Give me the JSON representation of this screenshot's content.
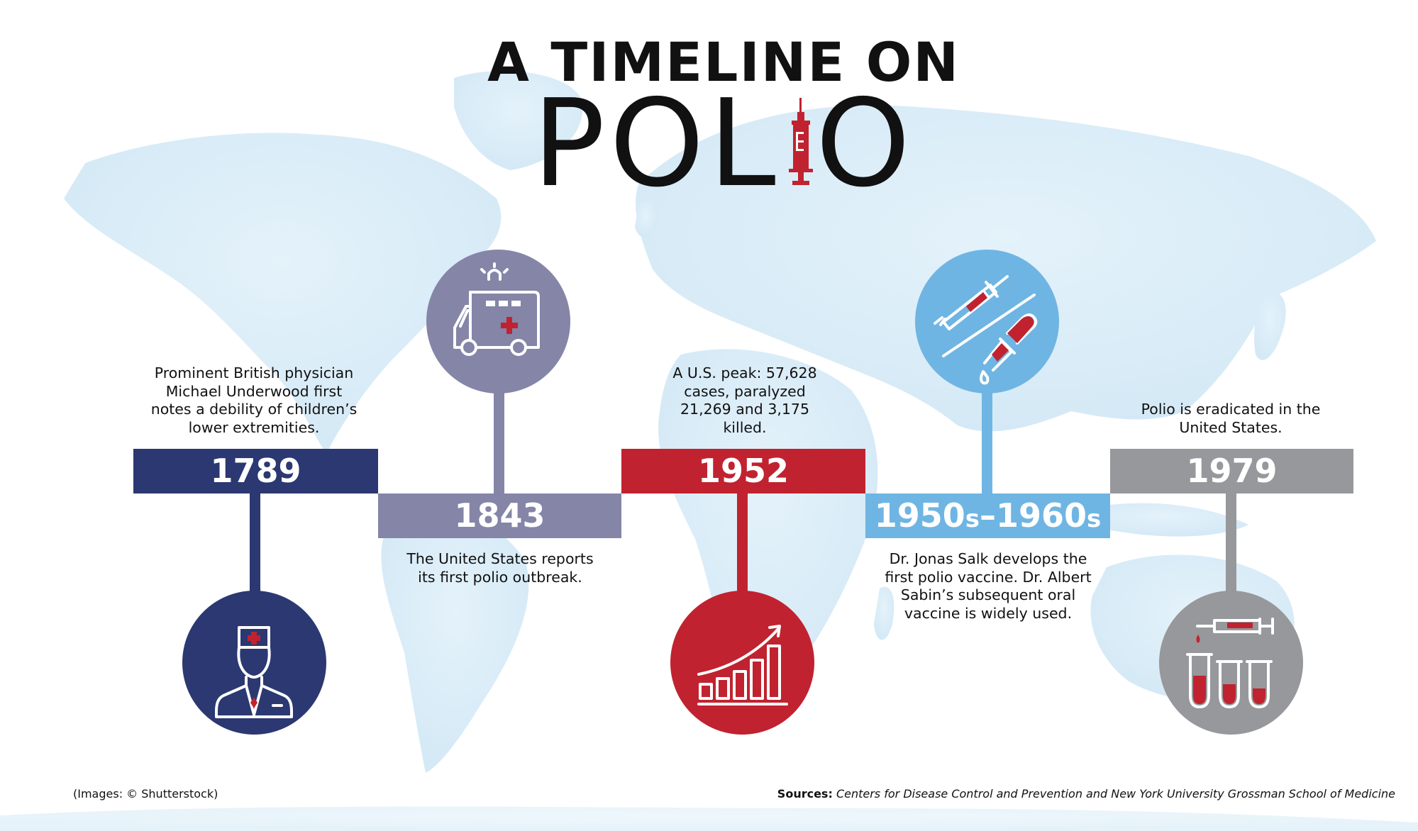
{
  "title": {
    "line1": "A TIMELINE ON",
    "word_left": "POL",
    "word_right": "O"
  },
  "colors": {
    "navy": "#2b3871",
    "purple": "#8485a7",
    "red": "#c1222f",
    "lightblue": "#6fb5e3",
    "gray": "#97989b",
    "map": "#d9ecf7"
  },
  "events": [
    {
      "year": "1789",
      "text": "Prominent British physician Michael Underwood first notes a debility of children’s lower extremities.",
      "icon": "doctor-icon"
    },
    {
      "year": "1843",
      "text": "The United States reports its first polio outbreak.",
      "icon": "ambulance-icon"
    },
    {
      "year": "1952",
      "text": "A U.S. peak: 57,628 cases, paralyzed 21,269 and 3,175 killed.",
      "icon": "rising-chart-icon"
    },
    {
      "year_main1": "1950",
      "year_s1": "s",
      "year_dash": "–",
      "year_main2": "1960",
      "year_s2": "s",
      "text": "Dr. Jonas Salk develops the first polio vaccine. Dr. Albert Sabin’s subsequent oral vaccine is widely used.",
      "icon": "syringe-dropper-icon"
    },
    {
      "year": "1979",
      "text": "Polio is eradicated in the United States.",
      "icon": "test-tubes-icon"
    }
  ],
  "footer": {
    "images_credit": "(Images: © Shutterstock)",
    "sources_label": "Sources:",
    "sources_text": "Centers for Disease Control and Prevention and New York University Grossman School of Medicine"
  }
}
